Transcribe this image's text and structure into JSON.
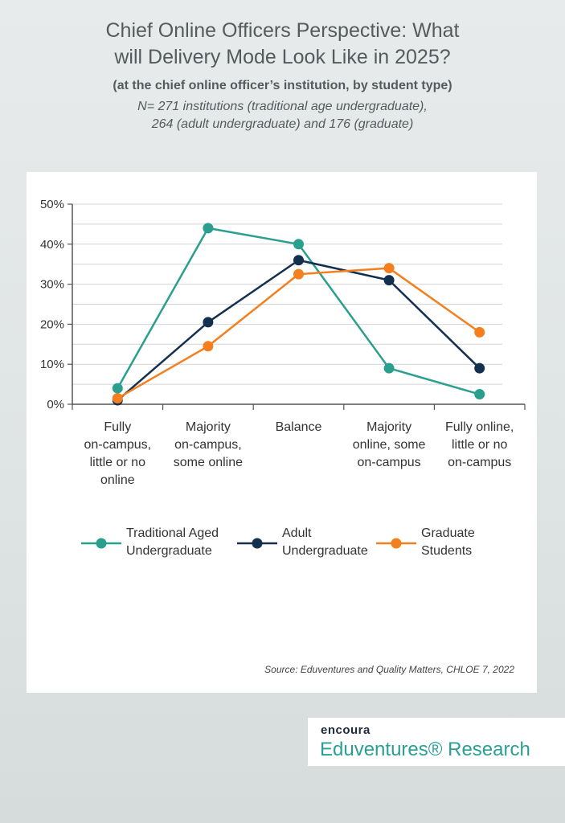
{
  "header": {
    "title_lines": [
      "Chief Online Officers Perspective: What",
      "will Delivery Mode Look Like in 2025?"
    ],
    "subtitle": "(at the chief online officer’s institution, by student type)",
    "note_lines": [
      "N= 271 institutions (traditional age undergraduate),",
      "264 (adult undergraduate) and 176 (graduate)"
    ]
  },
  "chart_data": {
    "type": "line",
    "categories": [
      "Fully on-campus, little or no online",
      "Majority on-campus, some online",
      "Balance",
      "Majority online, some on-campus",
      "Fully online, little or no on-campus"
    ],
    "category_lines": [
      [
        "Fully",
        "on-campus,",
        "little or no",
        "online"
      ],
      [
        "Majority",
        "on-campus,",
        "some online"
      ],
      [
        "Balance"
      ],
      [
        "Majority",
        "online, some",
        "on-campus"
      ],
      [
        "Fully online,",
        "little or no",
        "on-campus"
      ]
    ],
    "series": [
      {
        "name": "Traditional Aged Undergraduate",
        "name_lines": [
          "Traditional Aged",
          "Undergraduate"
        ],
        "color": "#2a9f8e",
        "values": [
          4,
          44,
          40,
          9,
          2.5
        ]
      },
      {
        "name": "Adult Undergraduate",
        "name_lines": [
          "Adult",
          "Undergraduate"
        ],
        "color": "#14304f",
        "values": [
          1,
          20.5,
          36,
          31,
          9
        ]
      },
      {
        "name": "Graduate Students",
        "name_lines": [
          "Graduate",
          "Students"
        ],
        "color": "#f47f1f",
        "values": [
          1.5,
          14.5,
          32.5,
          34,
          18
        ]
      }
    ],
    "ylim": [
      0,
      50
    ],
    "yticks": [
      "0%",
      "10%",
      "20%",
      "30%",
      "40%",
      "50%"
    ],
    "grid": true,
    "legend": "bottom"
  },
  "source": "Source: Eduventures and Quality Matters, CHLOE 7, 2022",
  "brand": {
    "top": "encoura",
    "bottom": "Eduventures® Research"
  }
}
